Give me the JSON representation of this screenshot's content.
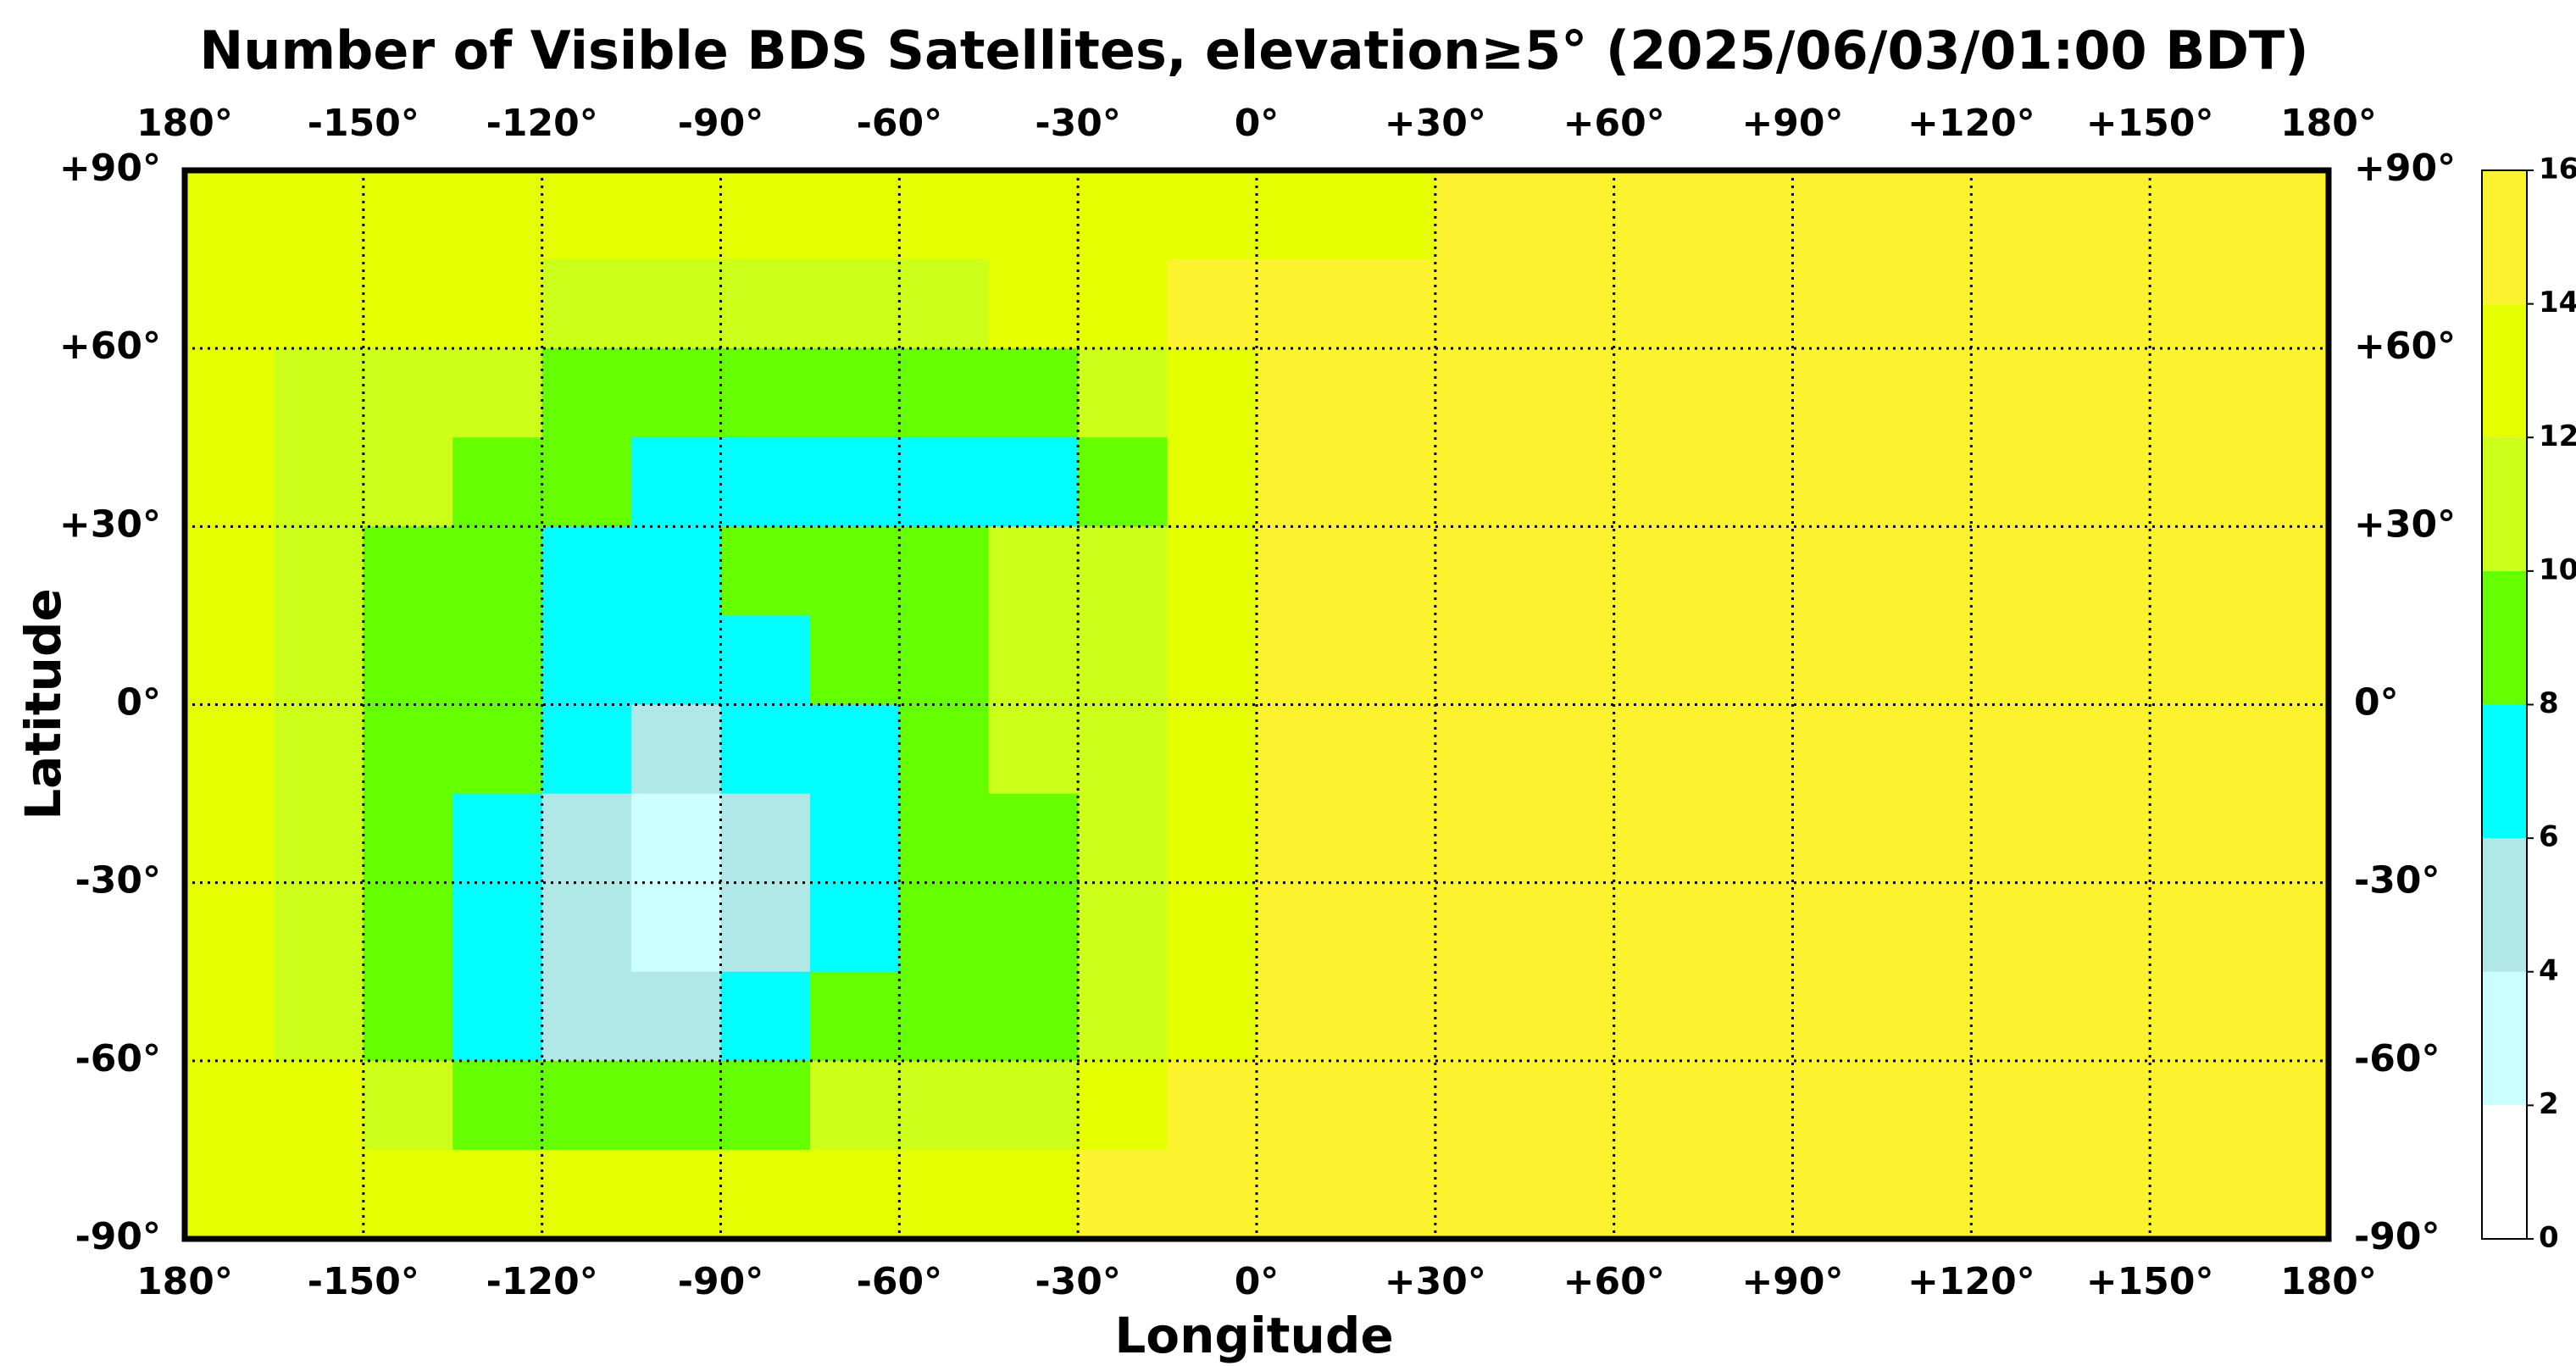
{
  "chart_data": {
    "type": "heatmap",
    "title": "Number of Visible BDS Satellites, elevation≥5° (2025/06/03/01:00 BDT)",
    "xlabel": "Longitude",
    "ylabel": "Latitude",
    "xlim": [
      -180,
      180
    ],
    "ylim": [
      -90,
      90
    ],
    "xticks": [
      {
        "value": -180,
        "label": "180°"
      },
      {
        "value": -150,
        "label": "-150°"
      },
      {
        "value": -120,
        "label": "-120°"
      },
      {
        "value": -90,
        "label": "-90°"
      },
      {
        "value": -60,
        "label": "-60°"
      },
      {
        "value": -30,
        "label": "-30°"
      },
      {
        "value": 0,
        "label": "0°"
      },
      {
        "value": 30,
        "label": "+30°"
      },
      {
        "value": 60,
        "label": "+60°"
      },
      {
        "value": 90,
        "label": "+90°"
      },
      {
        "value": 120,
        "label": "+120°"
      },
      {
        "value": 150,
        "label": "+150°"
      },
      {
        "value": 180,
        "label": "180°"
      }
    ],
    "yticks": [
      {
        "value": 90,
        "label": "+90°"
      },
      {
        "value": 60,
        "label": "+60°"
      },
      {
        "value": 30,
        "label": "+30°"
      },
      {
        "value": 0,
        "label": "0°"
      },
      {
        "value": -30,
        "label": "-30°"
      },
      {
        "value": -60,
        "label": "-60°"
      },
      {
        "value": -90,
        "label": "-90°"
      }
    ],
    "grid": true,
    "x": [
      -172.5,
      -157.5,
      -142.5,
      -127.5,
      -112.5,
      -97.5,
      -82.5,
      -67.5,
      -52.5,
      -37.5,
      -22.5,
      -7.5,
      7.5,
      22.5,
      37.5,
      52.5,
      67.5,
      82.5,
      97.5,
      112.5,
      127.5,
      142.5,
      157.5,
      172.5
    ],
    "y": [
      82.5,
      67.5,
      52.5,
      37.5,
      22.5,
      7.5,
      -7.5,
      -22.5,
      -37.5,
      -52.5,
      -67.5,
      -82.5
    ],
    "values": [
      [
        13,
        13,
        13,
        13,
        13,
        13,
        13,
        13,
        13,
        13,
        13,
        13,
        13,
        13,
        15,
        15,
        15,
        15,
        15,
        15,
        15,
        15,
        15,
        15
      ],
      [
        13,
        13,
        13,
        13,
        11,
        11,
        11,
        11,
        11,
        13,
        13,
        15,
        15,
        15,
        15,
        15,
        15,
        15,
        15,
        15,
        15,
        15,
        15,
        15
      ],
      [
        13,
        11,
        11,
        11,
        9,
        9,
        9,
        9,
        9,
        9,
        11,
        13,
        15,
        15,
        15,
        15,
        15,
        15,
        15,
        15,
        15,
        15,
        15,
        15
      ],
      [
        13,
        11,
        11,
        9,
        9,
        7,
        7,
        7,
        7,
        7,
        9,
        13,
        15,
        15,
        15,
        15,
        15,
        15,
        15,
        15,
        15,
        15,
        15,
        15
      ],
      [
        13,
        11,
        9,
        9,
        7,
        7,
        9,
        9,
        9,
        11,
        11,
        13,
        15,
        15,
        15,
        15,
        15,
        15,
        15,
        15,
        15,
        15,
        15,
        15
      ],
      [
        13,
        11,
        9,
        9,
        7,
        7,
        7,
        9,
        9,
        11,
        11,
        13,
        15,
        15,
        15,
        15,
        15,
        15,
        15,
        15,
        15,
        15,
        15,
        15
      ],
      [
        13,
        11,
        9,
        9,
        7,
        5,
        7,
        7,
        9,
        11,
        11,
        13,
        15,
        15,
        15,
        15,
        15,
        15,
        15,
        15,
        15,
        15,
        15,
        15
      ],
      [
        13,
        11,
        9,
        7,
        5,
        3,
        5,
        7,
        9,
        9,
        11,
        13,
        15,
        15,
        15,
        15,
        15,
        15,
        15,
        15,
        15,
        15,
        15,
        15
      ],
      [
        13,
        11,
        9,
        7,
        5,
        3,
        5,
        7,
        9,
        9,
        11,
        13,
        15,
        15,
        15,
        15,
        15,
        15,
        15,
        15,
        15,
        15,
        15,
        15
      ],
      [
        13,
        11,
        9,
        7,
        5,
        5,
        7,
        9,
        9,
        9,
        11,
        13,
        15,
        15,
        15,
        15,
        15,
        15,
        15,
        15,
        15,
        15,
        15,
        15
      ],
      [
        13,
        13,
        11,
        9,
        9,
        9,
        9,
        11,
        11,
        11,
        13,
        15,
        15,
        15,
        15,
        15,
        15,
        15,
        15,
        15,
        15,
        15,
        15,
        15
      ],
      [
        13,
        13,
        13,
        13,
        13,
        13,
        13,
        13,
        13,
        13,
        15,
        15,
        15,
        15,
        15,
        15,
        15,
        15,
        15,
        15,
        15,
        15,
        15,
        15
      ]
    ],
    "colorbar": {
      "ticks": [
        0,
        2,
        4,
        6,
        8,
        10,
        12,
        14,
        16
      ],
      "colors": [
        "#ffffff",
        "#ccffff",
        "#b0e8e8",
        "#00ffff",
        "#66ff00",
        "#ccff1a",
        "#e6ff00",
        "#fdf22e"
      ]
    }
  }
}
